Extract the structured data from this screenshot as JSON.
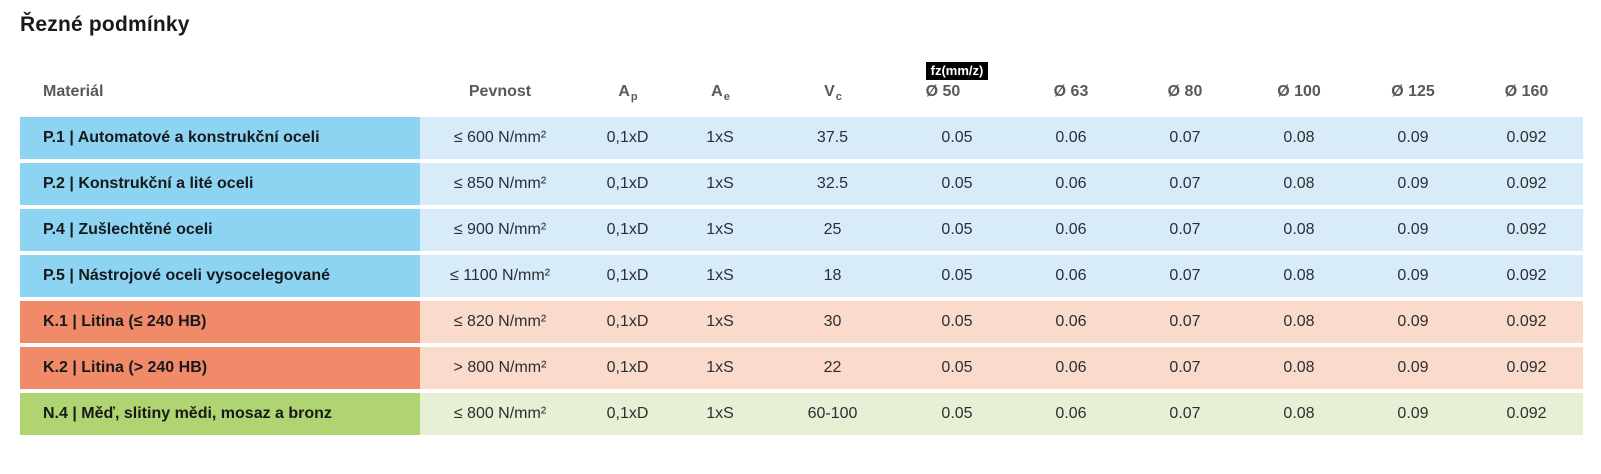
{
  "title": "Řezné podmínky",
  "theme": {
    "steel_dark": "#8dd3f2",
    "steel_light": "#d7ecf8",
    "cast_dark": "#f08a68",
    "cast_light": "#f9dacb",
    "nonferrous_dark": "#afd471",
    "nonferrous_light": "#e7efd4",
    "header_gray": "#58595c",
    "chip_bg": "#000000",
    "chip_fg": "#ffffff"
  },
  "table": {
    "headers": {
      "material": "Materiál",
      "pevnost": "Pevnost",
      "ap": {
        "main": "A",
        "sub": "p"
      },
      "ae": {
        "main": "A",
        "sub": "e"
      },
      "vc": {
        "main": "V",
        "sub": "c"
      },
      "fz_label": "fz(mm/z)",
      "diameters": [
        "Ø 50",
        "Ø 63",
        "Ø 80",
        "Ø 100",
        "Ø 125",
        "Ø 160"
      ]
    },
    "rows": [
      {
        "group": "steel",
        "material": "P.1 | Automatové a konstrukční oceli",
        "pevnost": "≤ 600 N/mm²",
        "ap": "0,1xD",
        "ae": "1xS",
        "vc": "37.5",
        "fz": [
          "0.05",
          "0.06",
          "0.07",
          "0.08",
          "0.09",
          "0.092"
        ]
      },
      {
        "group": "steel",
        "material": "P.2 | Konstrukční a lité oceli",
        "pevnost": "≤ 850 N/mm²",
        "ap": "0,1xD",
        "ae": "1xS",
        "vc": "32.5",
        "fz": [
          "0.05",
          "0.06",
          "0.07",
          "0.08",
          "0.09",
          "0.092"
        ]
      },
      {
        "group": "steel",
        "material": "P.4 | Zušlechtěné oceli",
        "pevnost": "≤ 900 N/mm²",
        "ap": "0,1xD",
        "ae": "1xS",
        "vc": "25",
        "fz": [
          "0.05",
          "0.06",
          "0.07",
          "0.08",
          "0.09",
          "0.092"
        ]
      },
      {
        "group": "steel",
        "material": "P.5 | Nástrojové oceli vysocelegované",
        "pevnost": "≤ 1100 N/mm²",
        "ap": "0,1xD",
        "ae": "1xS",
        "vc": "18",
        "fz": [
          "0.05",
          "0.06",
          "0.07",
          "0.08",
          "0.09",
          "0.092"
        ]
      },
      {
        "group": "cast",
        "material": "K.1 | Litina (≤ 240 HB)",
        "pevnost": "≤ 820 N/mm²",
        "ap": "0,1xD",
        "ae": "1xS",
        "vc": "30",
        "fz": [
          "0.05",
          "0.06",
          "0.07",
          "0.08",
          "0.09",
          "0.092"
        ]
      },
      {
        "group": "cast",
        "material": "K.2 | Litina (> 240 HB)",
        "pevnost": "> 800 N/mm²",
        "ap": "0,1xD",
        "ae": "1xS",
        "vc": "22",
        "fz": [
          "0.05",
          "0.06",
          "0.07",
          "0.08",
          "0.09",
          "0.092"
        ]
      },
      {
        "group": "nonferrous",
        "material": "N.4 | Měď, slitiny mědi, mosaz a bronz",
        "pevnost": "≤ 800 N/mm²",
        "ap": "0,1xD",
        "ae": "1xS",
        "vc": "60-100",
        "fz": [
          "0.05",
          "0.06",
          "0.07",
          "0.08",
          "0.09",
          "0.092"
        ]
      }
    ]
  }
}
